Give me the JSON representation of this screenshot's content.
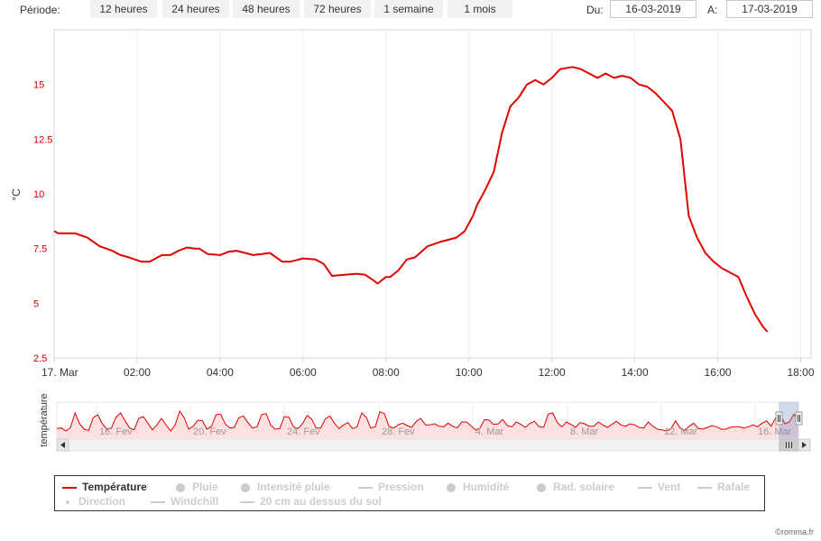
{
  "toolbar": {
    "period_label": "Période:",
    "ranges": [
      "12 heures",
      "24 heures",
      "48 heures",
      "72 heures",
      "1 semaine",
      "1 mois"
    ],
    "from_label": "Du:",
    "from_value": "16-03-2019",
    "to_label": "A:",
    "to_value": "17-03-2019"
  },
  "chart_data": {
    "type": "line",
    "title": "",
    "xlabel": "",
    "ylabel": "°C",
    "ylim": [
      2.5,
      17.5
    ],
    "xlim": [
      0,
      18.25
    ],
    "yticks": [
      2.5,
      5,
      7.5,
      10,
      12.5,
      15
    ],
    "ytick_labels": [
      "2.5",
      "5",
      "7.5",
      "10",
      "12.5",
      "15"
    ],
    "xticks": [
      0,
      2,
      4,
      6,
      8,
      10,
      12,
      14,
      16,
      18
    ],
    "xtick_labels": [
      "17. Mar",
      "02:00",
      "04:00",
      "06:00",
      "08:00",
      "10:00",
      "12:00",
      "14:00",
      "16:00",
      "18:00"
    ],
    "grid": "vertical",
    "series": [
      {
        "name": "Température",
        "color": "#e00000",
        "x": [
          0,
          0.1,
          0.5,
          0.8,
          1.1,
          1.4,
          1.6,
          1.8,
          2.1,
          2.3,
          2.6,
          2.8,
          3.0,
          3.2,
          3.4,
          3.5,
          3.7,
          4.0,
          4.2,
          4.4,
          4.6,
          4.8,
          5.0,
          5.2,
          5.5,
          5.7,
          6.0,
          6.3,
          6.5,
          6.7,
          7.0,
          7.3,
          7.5,
          7.7,
          7.8,
          8.0,
          8.1,
          8.3,
          8.5,
          8.7,
          9.0,
          9.3,
          9.5,
          9.7,
          9.9,
          10.1,
          10.2,
          10.4,
          10.6,
          10.8,
          11.0,
          11.2,
          11.4,
          11.6,
          11.8,
          12.0,
          12.2,
          12.5,
          12.7,
          12.9,
          13.1,
          13.3,
          13.5,
          13.7,
          13.9,
          14.1,
          14.3,
          14.5,
          14.7,
          14.9,
          15.1,
          15.3,
          15.5,
          15.7,
          15.9,
          16.1,
          16.3,
          16.5,
          16.7,
          16.9,
          17.1,
          17.2
        ],
        "y": [
          8.3,
          8.2,
          8.2,
          8.0,
          7.6,
          7.4,
          7.2,
          7.1,
          6.9,
          6.9,
          7.2,
          7.2,
          7.4,
          7.55,
          7.5,
          7.5,
          7.25,
          7.2,
          7.35,
          7.4,
          7.3,
          7.2,
          7.25,
          7.3,
          6.9,
          6.9,
          7.05,
          7.0,
          6.8,
          6.25,
          6.3,
          6.35,
          6.3,
          6.05,
          5.9,
          6.2,
          6.2,
          6.5,
          7.0,
          7.1,
          7.6,
          7.8,
          7.9,
          8.0,
          8.3,
          9.0,
          9.5,
          10.2,
          11.0,
          12.8,
          14.0,
          14.4,
          15.0,
          15.2,
          15.0,
          15.3,
          15.7,
          15.8,
          15.7,
          15.5,
          15.3,
          15.5,
          15.3,
          15.4,
          15.3,
          15.0,
          14.9,
          14.6,
          14.2,
          13.8,
          12.5,
          9.0,
          8.0,
          7.3,
          6.9,
          6.6,
          6.4,
          6.2,
          5.3,
          4.5,
          3.9,
          3.7
        ]
      }
    ]
  },
  "navigator": {
    "axis_label": "température",
    "labels": [
      "16. Fev",
      "20. Fev",
      "24. Fev",
      "28. Fev",
      "4. Mar",
      "8. Mar",
      "12. Mar",
      "16. Mar"
    ],
    "series": [
      3,
      3.1,
      2.6,
      3.2,
      5.6,
      3.8,
      2.9,
      2.7,
      4.8,
      5.3,
      3.8,
      2.9,
      3.1,
      4.9,
      5.6,
      4.3,
      3.1,
      2.8,
      4.7,
      5.0,
      3.9,
      2.8,
      3.6,
      4.7,
      3.6,
      2.6,
      3.6,
      5.9,
      4.8,
      2.9,
      3.4,
      4.4,
      4.3,
      2.9,
      3.4,
      5.3,
      5.4,
      3.8,
      3.1,
      3.2,
      4.8,
      5.1,
      4.0,
      3.1,
      3.3,
      5.3,
      5.5,
      3.6,
      2.9,
      3.0,
      5.0,
      4.9,
      3.3,
      3.0,
      3.8,
      5.2,
      4.6,
      3.1,
      3.1,
      4.6,
      5.1,
      3.9,
      3.0,
      3.6,
      4.0,
      3.0,
      3.3,
      5.6,
      4.9,
      3.1,
      3.3,
      5.8,
      5.5,
      3.4,
      3.1,
      3.6,
      3.9,
      3.5,
      3.2,
      4.2,
      4.7,
      3.6,
      3.6,
      3.8,
      3.4,
      3.3,
      3.9,
      3.4,
      3.1,
      4.1,
      4.1,
      3.5,
      2.8,
      3.1,
      4.5,
      4.4,
      3.7,
      3.8,
      4.5,
      3.5,
      3.3,
      4.1,
      3.7,
      3.2,
      3.9,
      4.2,
      3.3,
      3.2,
      5.4,
      5.6,
      4.0,
      3.3,
      4.1,
      3.7,
      3.2,
      4.0,
      3.8,
      3.4,
      3.4,
      4.1,
      3.6,
      3.2,
      3.7,
      4.2,
      3.6,
      3.4,
      3.8,
      3.6,
      3.2,
      3.1,
      4.1,
      3.4,
      2.9,
      2.8,
      2.6,
      3.0,
      4.3,
      3.1,
      2.7,
      3.4,
      3.9,
      3.0,
      2.9,
      3.2,
      3.5,
      3.3,
      2.9,
      2.9,
      3.2,
      3.3,
      3.3,
      3.1,
      3.3,
      3.6,
      3.3,
      3.9,
      4.3,
      3.4,
      4.8,
      5.4,
      3.8,
      4.1,
      5.4,
      4.2
    ],
    "scroll_left_icon": "left-arrow-icon",
    "scroll_right_icon": "right-arrow-icon"
  },
  "legend": {
    "items": [
      {
        "label": "Température",
        "symbol": "line",
        "active": true,
        "color": "#e00000"
      },
      {
        "label": "Pluie",
        "symbol": "dot",
        "active": false
      },
      {
        "label": "Intensité pluie",
        "symbol": "dot",
        "active": false
      },
      {
        "label": "Pression",
        "symbol": "line",
        "active": false
      },
      {
        "label": "Humidité",
        "symbol": "dot",
        "active": false
      },
      {
        "label": "Rad. solaire",
        "symbol": "dot",
        "active": false
      },
      {
        "label": "Vent",
        "symbol": "line",
        "active": false
      },
      {
        "label": "Rafale",
        "symbol": "line",
        "active": false
      },
      {
        "label": "Direction",
        "symbol": "smalldot",
        "active": false
      },
      {
        "label": "Windchill",
        "symbol": "line",
        "active": false
      },
      {
        "label": "20 cm au dessus du sol",
        "symbol": "line",
        "active": false
      }
    ]
  },
  "credit": "©romma.fr"
}
